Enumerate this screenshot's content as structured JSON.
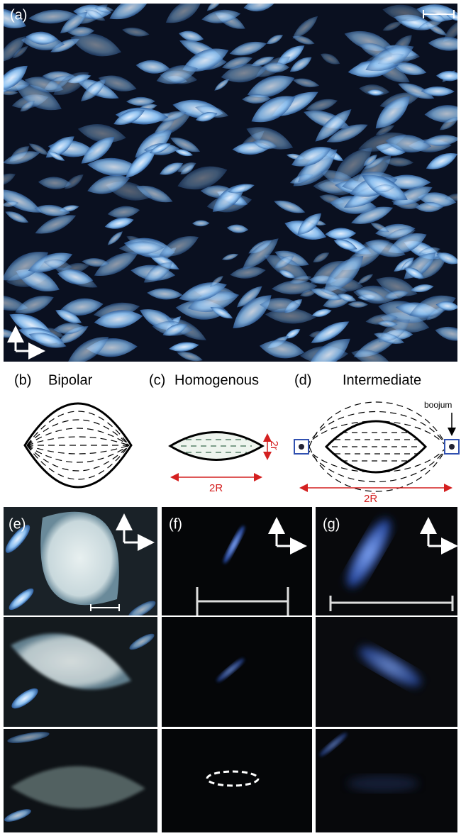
{
  "panels": {
    "a": {
      "label": "(a)"
    },
    "b": {
      "label": "(b)",
      "title": "Bipolar"
    },
    "c": {
      "label": "(c)",
      "title": "Homogenous",
      "width_label": "2R",
      "height_label": "2r"
    },
    "d": {
      "label": "(d)",
      "title": "Intermediate",
      "defect_label": "boojum",
      "width_label": "2R̃"
    },
    "e": {
      "label": "(e)"
    },
    "f": {
      "label": "(f)"
    },
    "g": {
      "label": "(g)"
    }
  }
}
